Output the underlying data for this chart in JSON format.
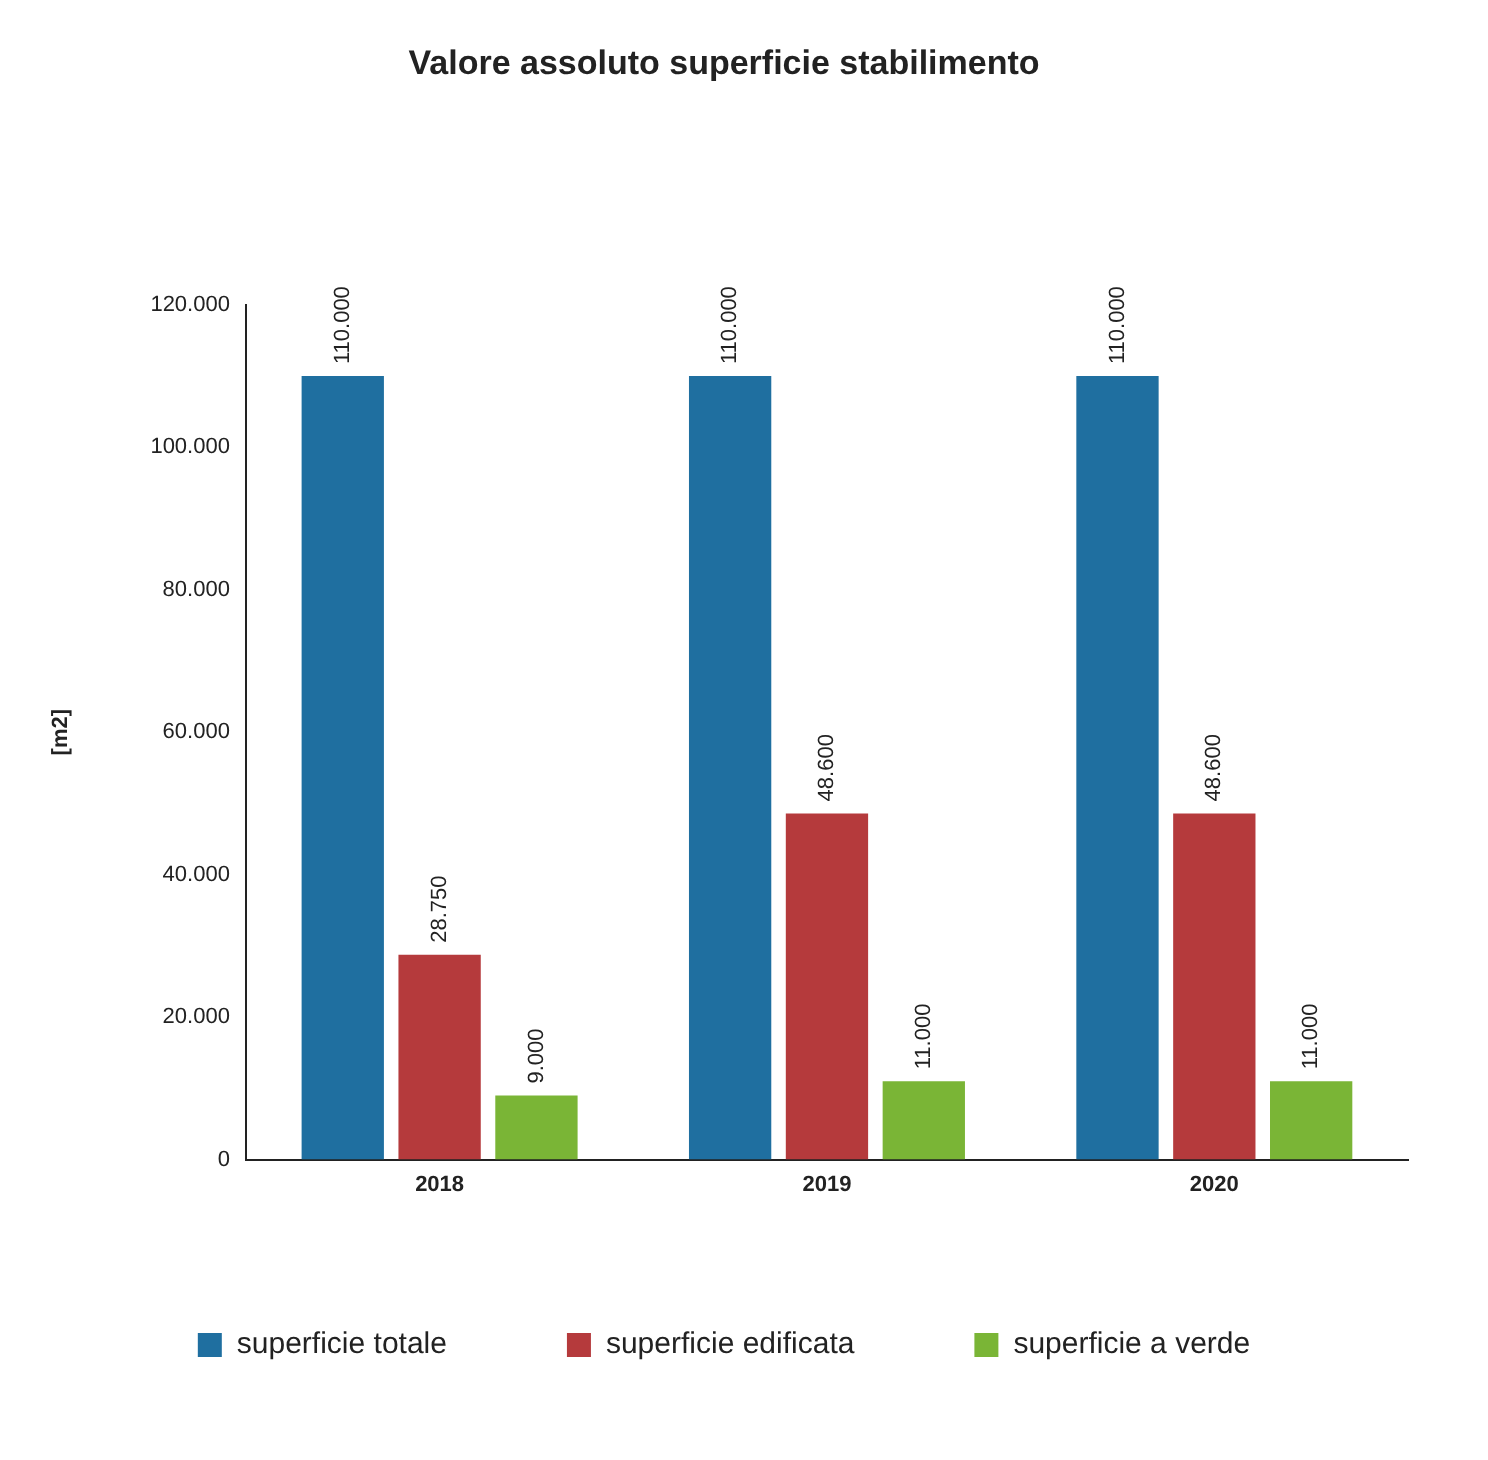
{
  "chart_data": {
    "type": "bar",
    "title": "Valore assoluto superficie stabilimento",
    "ylabel": "[m2]",
    "categories": [
      "2018",
      "2019",
      "2020"
    ],
    "series": [
      {
        "name": "superficie totale",
        "color": "#1f6fa0",
        "values": [
          110000,
          110000,
          110000
        ],
        "value_labels": [
          "110.000",
          "110.000",
          "110.000"
        ]
      },
      {
        "name": "superficie edificata",
        "color": "#b53a3c",
        "values": [
          28750,
          48600,
          48600
        ],
        "value_labels": [
          "28.750",
          "48.600",
          "48.600"
        ]
      },
      {
        "name": "superficie a verde",
        "color": "#7ab536",
        "values": [
          9000,
          11000,
          11000
        ],
        "value_labels": [
          "9.000",
          "11.000",
          "11.000"
        ]
      }
    ],
    "ylim": [
      0,
      120000
    ],
    "yticks": [
      {
        "value": 0,
        "label": "0"
      },
      {
        "value": 20000,
        "label": "20.000"
      },
      {
        "value": 40000,
        "label": "40.000"
      },
      {
        "value": 60000,
        "label": "60.000"
      },
      {
        "value": 80000,
        "label": "80.000"
      },
      {
        "value": 100000,
        "label": "100.000"
      },
      {
        "value": 120000,
        "label": "120.000"
      }
    ],
    "grid": false,
    "legend": "bottom"
  }
}
